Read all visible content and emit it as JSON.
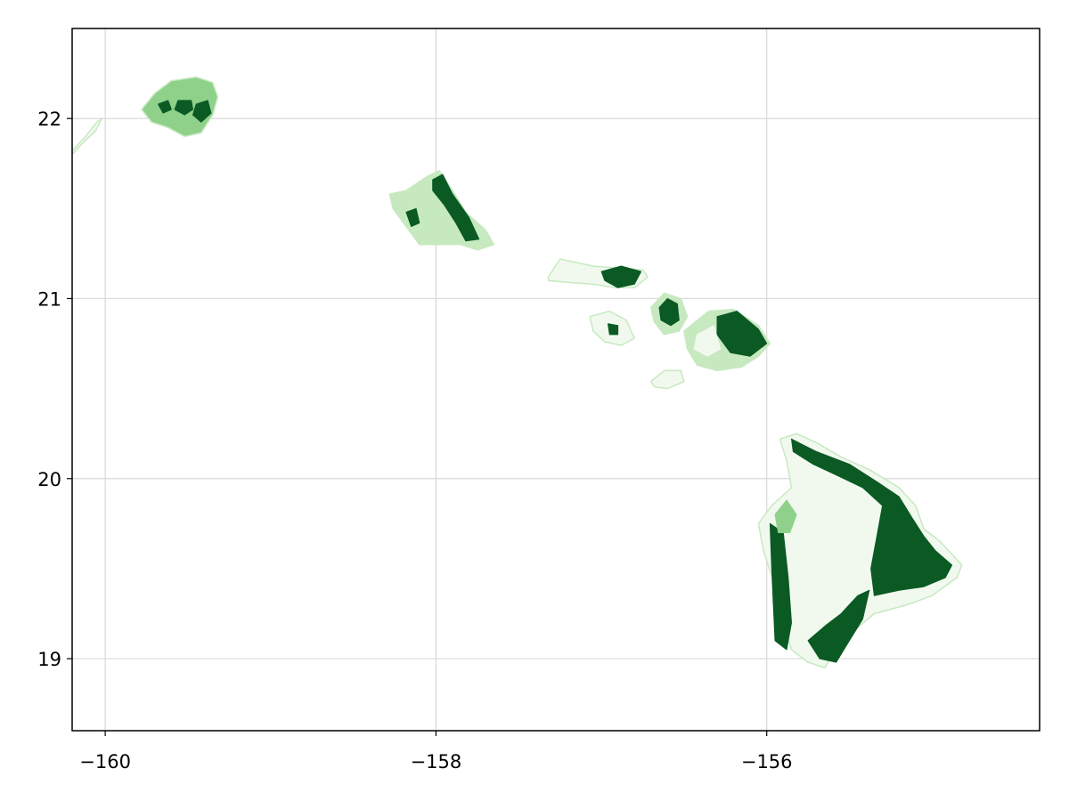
{
  "chart_data": {
    "type": "heatmap",
    "title": "",
    "xlabel": "",
    "ylabel": "",
    "xlim": [
      -160.2,
      -154.35
    ],
    "ylim": [
      18.6,
      22.5
    ],
    "grid": true,
    "xticks": [
      {
        "value": -160,
        "label": "−160"
      },
      {
        "value": -158,
        "label": "−158"
      },
      {
        "value": -156,
        "label": "−156"
      }
    ],
    "yticks": [
      {
        "value": 19,
        "label": "19"
      },
      {
        "value": 20,
        "label": "20"
      },
      {
        "value": 21,
        "label": "21"
      },
      {
        "value": 22,
        "label": "22"
      }
    ],
    "colors": {
      "lightest": "#f1f9ef",
      "light": "#c7e9c0",
      "medium": "#8fd18b",
      "dark": "#0b5a24"
    },
    "islands": [
      {
        "name": "Niihau",
        "color": "lightest",
        "outline": [
          [
            -160.2,
            21.82
          ],
          [
            -160.12,
            21.9
          ],
          [
            -160.05,
            21.98
          ],
          [
            -160.02,
            22.0
          ],
          [
            -160.06,
            21.93
          ],
          [
            -160.14,
            21.86
          ],
          [
            -160.2,
            21.8
          ]
        ],
        "patches": []
      },
      {
        "name": "Kauai",
        "color": "medium",
        "outline": [
          [
            -159.78,
            22.05
          ],
          [
            -159.7,
            22.14
          ],
          [
            -159.6,
            22.21
          ],
          [
            -159.45,
            22.23
          ],
          [
            -159.35,
            22.2
          ],
          [
            -159.32,
            22.12
          ],
          [
            -159.35,
            22.02
          ],
          [
            -159.42,
            21.92
          ],
          [
            -159.52,
            21.9
          ],
          [
            -159.62,
            21.95
          ],
          [
            -159.72,
            21.98
          ],
          [
            -159.78,
            22.05
          ]
        ],
        "patches": [
          {
            "color": "dark",
            "outline": [
              [
                -159.56,
                22.1
              ],
              [
                -159.48,
                22.1
              ],
              [
                -159.47,
                22.05
              ],
              [
                -159.52,
                22.02
              ],
              [
                -159.58,
                22.05
              ]
            ]
          },
          {
            "color": "dark",
            "outline": [
              [
                -159.45,
                22.08
              ],
              [
                -159.38,
                22.1
              ],
              [
                -159.36,
                22.03
              ],
              [
                -159.42,
                21.98
              ],
              [
                -159.47,
                22.02
              ]
            ]
          },
          {
            "color": "dark",
            "outline": [
              [
                -159.68,
                22.08
              ],
              [
                -159.62,
                22.1
              ],
              [
                -159.6,
                22.05
              ],
              [
                -159.65,
                22.03
              ]
            ]
          }
        ]
      },
      {
        "name": "Oahu",
        "color": "light",
        "outline": [
          [
            -158.28,
            21.58
          ],
          [
            -158.18,
            21.6
          ],
          [
            -158.05,
            21.68
          ],
          [
            -157.98,
            21.71
          ],
          [
            -157.9,
            21.6
          ],
          [
            -157.82,
            21.48
          ],
          [
            -157.7,
            21.38
          ],
          [
            -157.65,
            21.3
          ],
          [
            -157.75,
            21.27
          ],
          [
            -157.85,
            21.3
          ],
          [
            -157.97,
            21.3
          ],
          [
            -158.1,
            21.3
          ],
          [
            -158.18,
            21.4
          ],
          [
            -158.26,
            21.5
          ]
        ],
        "patches": [
          {
            "color": "dark",
            "outline": [
              [
                -158.02,
                21.66
              ],
              [
                -157.96,
                21.69
              ],
              [
                -157.9,
                21.58
              ],
              [
                -157.8,
                21.45
              ],
              [
                -157.74,
                21.33
              ],
              [
                -157.82,
                21.32
              ],
              [
                -157.88,
                21.42
              ],
              [
                -157.95,
                21.52
              ],
              [
                -158.02,
                21.6
              ]
            ]
          },
          {
            "color": "dark",
            "outline": [
              [
                -158.18,
                21.48
              ],
              [
                -158.12,
                21.5
              ],
              [
                -158.1,
                21.42
              ],
              [
                -158.15,
                21.4
              ]
            ]
          }
        ]
      },
      {
        "name": "Molokai",
        "color": "lightest",
        "outline": [
          [
            -157.32,
            21.12
          ],
          [
            -157.25,
            21.22
          ],
          [
            -157.05,
            21.18
          ],
          [
            -156.9,
            21.17
          ],
          [
            -156.75,
            21.16
          ],
          [
            -156.72,
            21.12
          ],
          [
            -156.8,
            21.06
          ],
          [
            -156.92,
            21.06
          ],
          [
            -157.05,
            21.08
          ],
          [
            -157.2,
            21.09
          ],
          [
            -157.32,
            21.1
          ]
        ],
        "patches": [
          {
            "color": "dark",
            "outline": [
              [
                -157.0,
                21.15
              ],
              [
                -156.88,
                21.18
              ],
              [
                -156.76,
                21.15
              ],
              [
                -156.8,
                21.08
              ],
              [
                -156.9,
                21.06
              ],
              [
                -156.98,
                21.1
              ]
            ]
          }
        ]
      },
      {
        "name": "Lanai",
        "color": "lightest",
        "outline": [
          [
            -157.07,
            20.9
          ],
          [
            -156.95,
            20.93
          ],
          [
            -156.85,
            20.88
          ],
          [
            -156.8,
            20.78
          ],
          [
            -156.88,
            20.74
          ],
          [
            -156.98,
            20.76
          ],
          [
            -157.05,
            20.82
          ]
        ],
        "patches": [
          {
            "color": "dark",
            "outline": [
              [
                -156.96,
                20.86
              ],
              [
                -156.9,
                20.85
              ],
              [
                -156.9,
                20.8
              ],
              [
                -156.95,
                20.8
              ]
            ]
          }
        ]
      },
      {
        "name": "West Maui",
        "color": "light",
        "outline": [
          [
            -156.7,
            20.95
          ],
          [
            -156.62,
            21.03
          ],
          [
            -156.52,
            21.0
          ],
          [
            -156.48,
            20.9
          ],
          [
            -156.53,
            20.82
          ],
          [
            -156.62,
            20.8
          ],
          [
            -156.68,
            20.87
          ]
        ],
        "patches": [
          {
            "color": "dark",
            "outline": [
              [
                -156.65,
                20.95
              ],
              [
                -156.6,
                21.0
              ],
              [
                -156.54,
                20.97
              ],
              [
                -156.53,
                20.88
              ],
              [
                -156.58,
                20.85
              ],
              [
                -156.64,
                20.88
              ]
            ]
          }
        ]
      },
      {
        "name": "East Maui",
        "color": "light",
        "outline": [
          [
            -156.5,
            20.82
          ],
          [
            -156.35,
            20.93
          ],
          [
            -156.2,
            20.94
          ],
          [
            -156.05,
            20.85
          ],
          [
            -155.98,
            20.75
          ],
          [
            -156.05,
            20.68
          ],
          [
            -156.15,
            20.62
          ],
          [
            -156.3,
            20.6
          ],
          [
            -156.42,
            20.63
          ],
          [
            -156.48,
            20.72
          ]
        ],
        "patches": [
          {
            "color": "dark",
            "outline": [
              [
                -156.3,
                20.9
              ],
              [
                -156.18,
                20.93
              ],
              [
                -156.05,
                20.83
              ],
              [
                -156.0,
                20.75
              ],
              [
                -156.1,
                20.68
              ],
              [
                -156.22,
                20.7
              ],
              [
                -156.3,
                20.8
              ]
            ]
          },
          {
            "color": "lightest",
            "outline": [
              [
                -156.42,
                20.8
              ],
              [
                -156.32,
                20.85
              ],
              [
                -156.28,
                20.72
              ],
              [
                -156.36,
                20.68
              ],
              [
                -156.44,
                20.72
              ]
            ]
          }
        ]
      },
      {
        "name": "Kahoolawe",
        "color": "lightest",
        "outline": [
          [
            -156.7,
            20.54
          ],
          [
            -156.62,
            20.6
          ],
          [
            -156.52,
            20.6
          ],
          [
            -156.5,
            20.54
          ],
          [
            -156.6,
            20.5
          ],
          [
            -156.68,
            20.51
          ]
        ],
        "patches": []
      },
      {
        "name": "Hawaii",
        "color": "lightest",
        "outline": [
          [
            -155.92,
            20.22
          ],
          [
            -155.82,
            20.25
          ],
          [
            -155.7,
            20.2
          ],
          [
            -155.55,
            20.12
          ],
          [
            -155.38,
            20.05
          ],
          [
            -155.2,
            19.95
          ],
          [
            -155.1,
            19.85
          ],
          [
            -155.05,
            19.72
          ],
          [
            -154.95,
            19.65
          ],
          [
            -154.82,
            19.52
          ],
          [
            -154.85,
            19.45
          ],
          [
            -155.0,
            19.35
          ],
          [
            -155.15,
            19.3
          ],
          [
            -155.35,
            19.25
          ],
          [
            -155.48,
            19.15
          ],
          [
            -155.58,
            19.05
          ],
          [
            -155.65,
            18.95
          ],
          [
            -155.75,
            18.98
          ],
          [
            -155.85,
            19.05
          ],
          [
            -155.9,
            19.2
          ],
          [
            -155.95,
            19.4
          ],
          [
            -156.02,
            19.6
          ],
          [
            -156.05,
            19.75
          ],
          [
            -155.97,
            19.85
          ],
          [
            -155.85,
            19.95
          ],
          [
            -155.88,
            20.1
          ],
          [
            -155.92,
            20.22
          ]
        ],
        "patches": [
          {
            "color": "dark",
            "outline": [
              [
                -155.85,
                20.22
              ],
              [
                -155.7,
                20.15
              ],
              [
                -155.5,
                20.08
              ],
              [
                -155.33,
                19.98
              ],
              [
                -155.2,
                19.9
              ],
              [
                -155.12,
                19.78
              ],
              [
                -155.05,
                19.68
              ],
              [
                -154.98,
                19.6
              ],
              [
                -154.88,
                19.52
              ],
              [
                -154.92,
                19.45
              ],
              [
                -155.05,
                19.4
              ],
              [
                -155.2,
                19.38
              ],
              [
                -155.35,
                19.35
              ],
              [
                -155.37,
                19.5
              ],
              [
                -155.33,
                19.7
              ],
              [
                -155.3,
                19.85
              ],
              [
                -155.42,
                19.95
              ],
              [
                -155.58,
                20.02
              ],
              [
                -155.72,
                20.08
              ],
              [
                -155.84,
                20.15
              ]
            ]
          },
          {
            "color": "dark",
            "outline": [
              [
                -155.98,
                19.75
              ],
              [
                -155.9,
                19.7
              ],
              [
                -155.87,
                19.45
              ],
              [
                -155.85,
                19.2
              ],
              [
                -155.88,
                19.05
              ],
              [
                -155.95,
                19.1
              ],
              [
                -155.96,
                19.3
              ],
              [
                -155.97,
                19.5
              ]
            ]
          },
          {
            "color": "dark",
            "outline": [
              [
                -155.75,
                19.1
              ],
              [
                -155.68,
                19.0
              ],
              [
                -155.58,
                18.98
              ],
              [
                -155.5,
                19.1
              ],
              [
                -155.42,
                19.22
              ],
              [
                -155.38,
                19.38
              ],
              [
                -155.45,
                19.35
              ],
              [
                -155.55,
                19.25
              ],
              [
                -155.65,
                19.18
              ]
            ]
          },
          {
            "color": "medium",
            "outline": [
              [
                -155.95,
                19.8
              ],
              [
                -155.88,
                19.88
              ],
              [
                -155.82,
                19.8
              ],
              [
                -155.86,
                19.7
              ],
              [
                -155.93,
                19.7
              ]
            ]
          }
        ]
      }
    ]
  }
}
